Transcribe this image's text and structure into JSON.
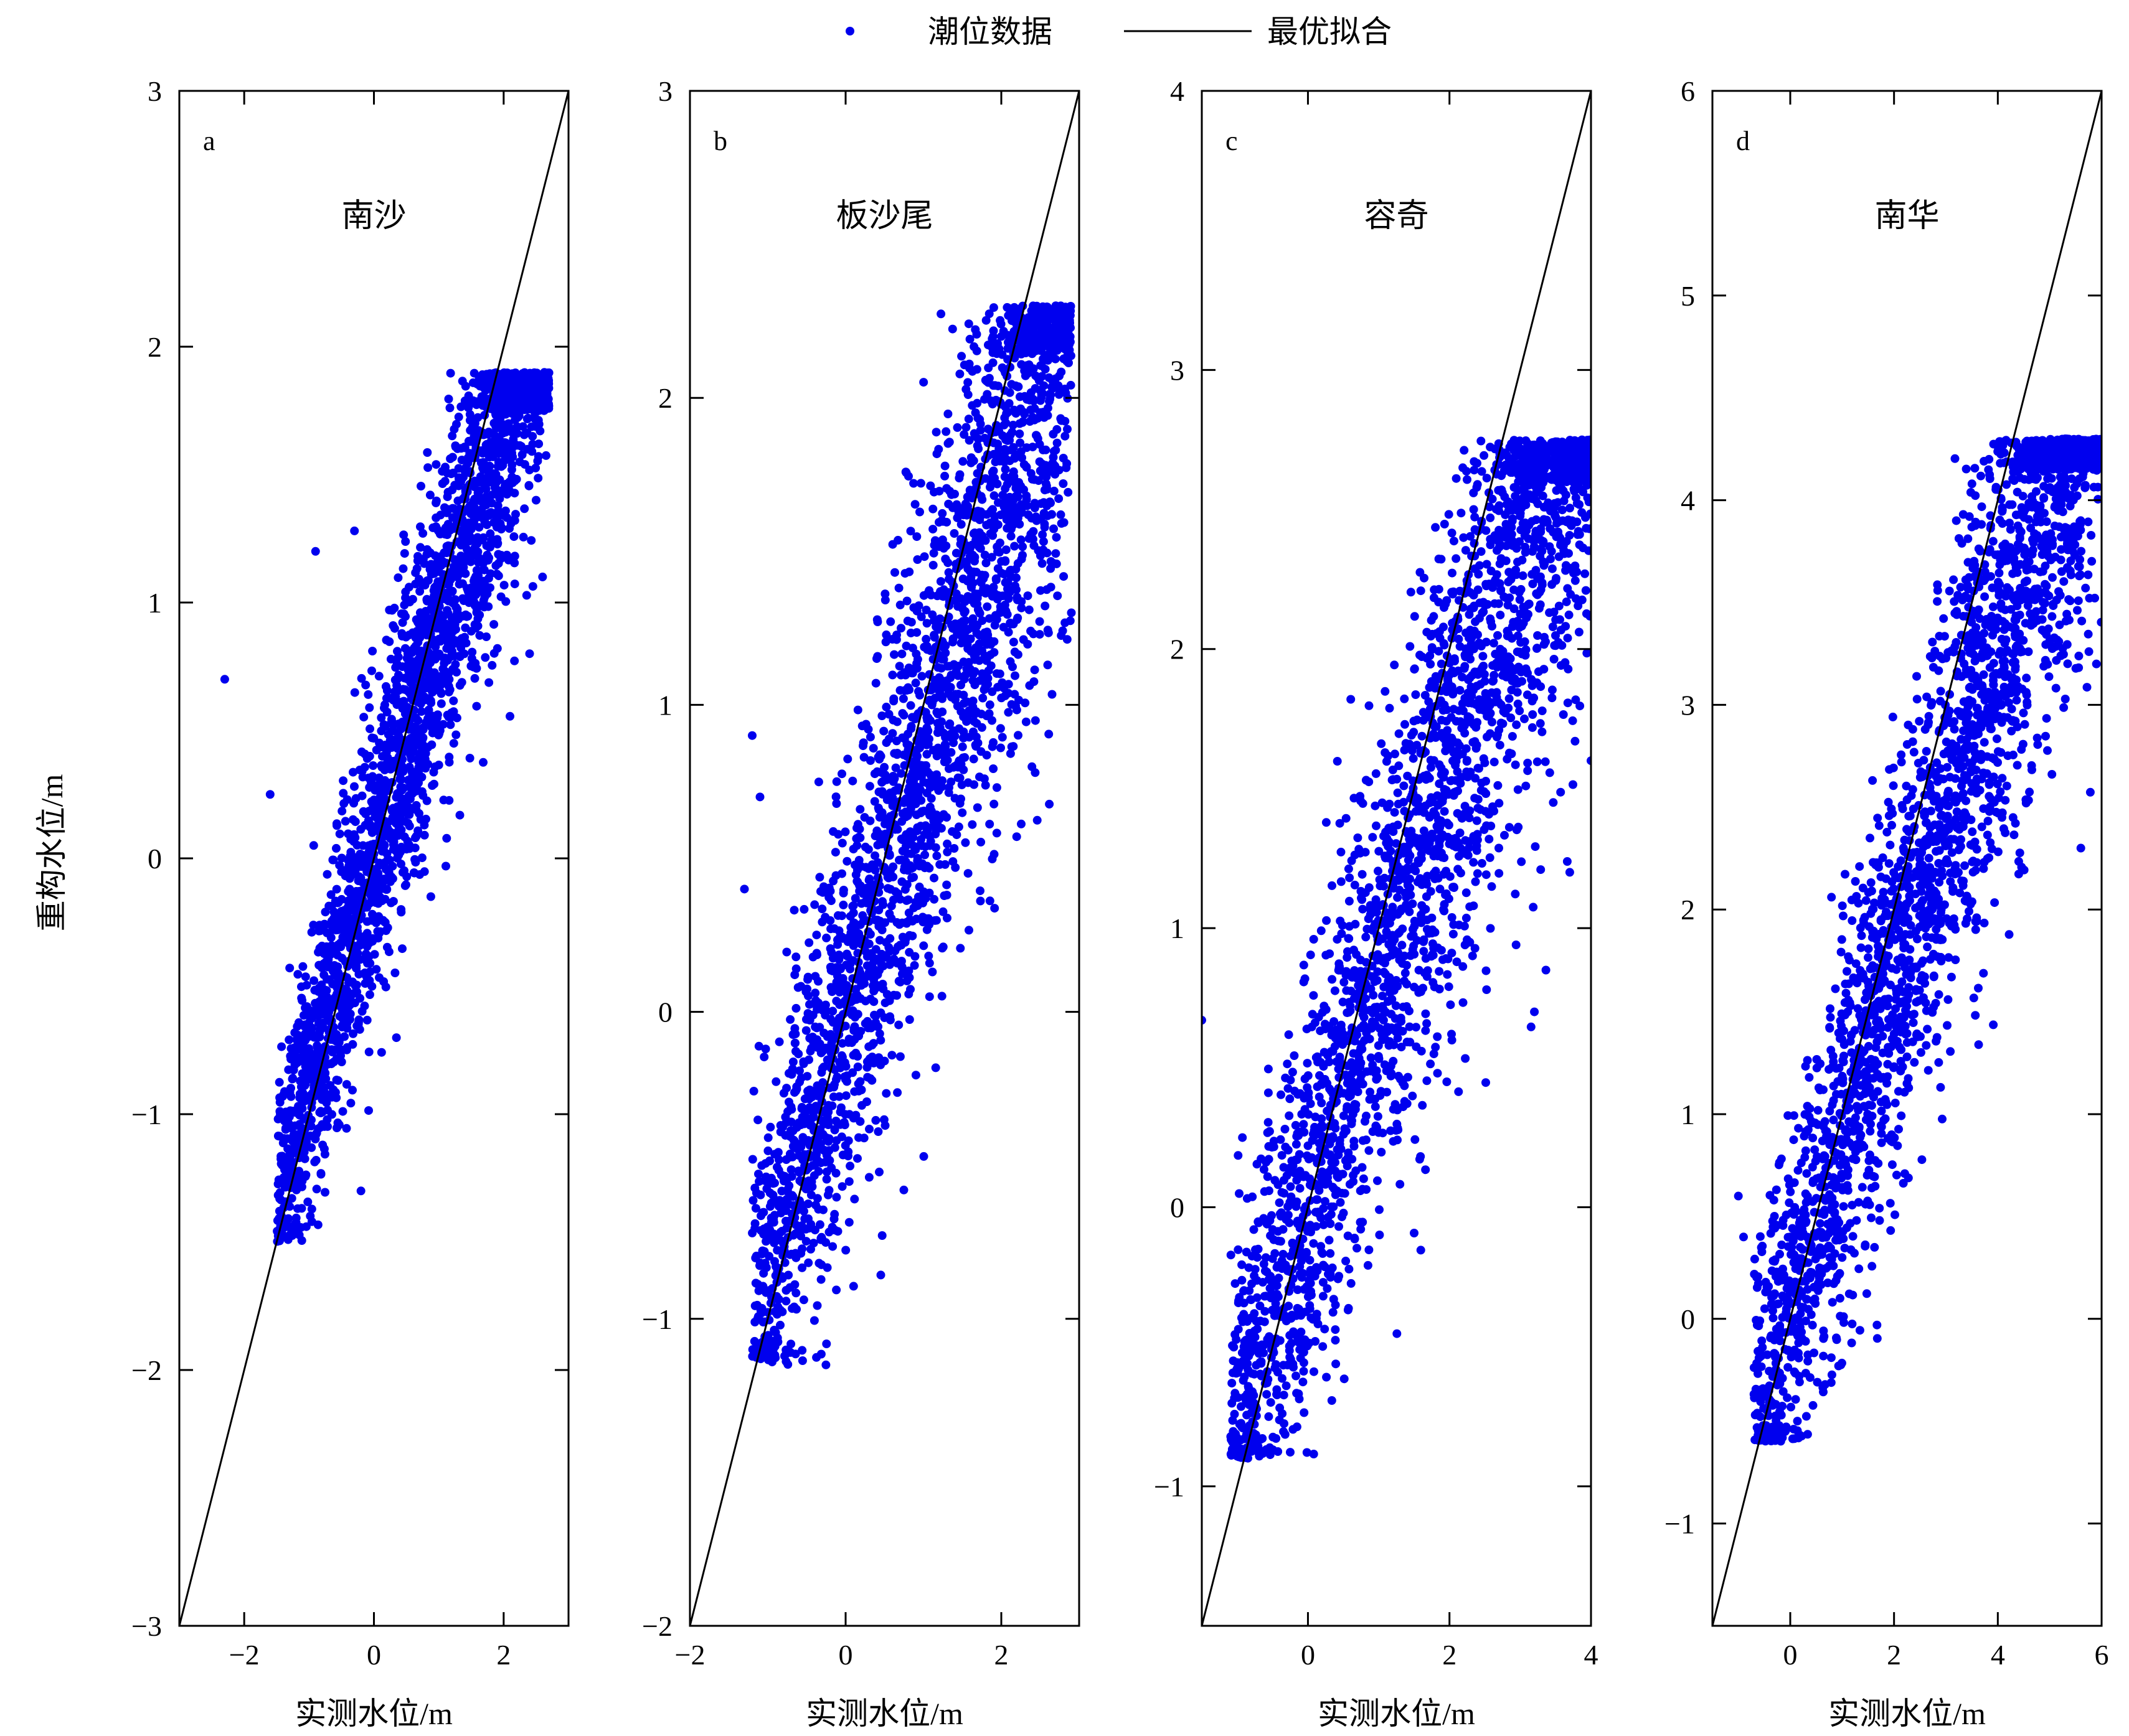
{
  "legend": {
    "scatter_label": "潮位数据",
    "line_label": "最优拟合",
    "placement": "top-center"
  },
  "colors": {
    "points": "#0000ee",
    "line": "#000000",
    "frame": "#000000"
  },
  "ylabel": "重构水位/m",
  "chart_data": [
    {
      "type": "scatter",
      "letter": "a",
      "station": "南沙",
      "xlabel": "实测水位/m",
      "xlim": [
        -3,
        3
      ],
      "ylim": [
        -3,
        3
      ],
      "xticks": [
        "−2",
        "0",
        "2"
      ],
      "xtick_values": [
        -2,
        0,
        2
      ],
      "yticks": [
        "3",
        "2",
        "1",
        "0",
        "−1",
        "−2",
        "−3"
      ],
      "ytick_values": [
        3,
        2,
        1,
        0,
        -1,
        -2,
        -3
      ],
      "fit_line": {
        "slope": 1,
        "intercept": 0,
        "from": [
          -3,
          -3
        ],
        "to": [
          3,
          3
        ]
      },
      "cloud": {
        "x_range": [
          -1.5,
          2.7
        ],
        "y_range": [
          -1.5,
          1.9
        ],
        "slope": 0.88,
        "offset": 0.02,
        "spread": 0.32
      },
      "outliers": [
        [
          -2.3,
          0.7
        ],
        [
          -1.6,
          0.25
        ],
        [
          -0.9,
          1.2
        ],
        [
          -0.3,
          1.28
        ],
        [
          2.5,
          1.4
        ],
        [
          2.6,
          1.1
        ],
        [
          2.4,
          0.8
        ],
        [
          -0.2,
          -1.3
        ]
      ]
    },
    {
      "type": "scatter",
      "letter": "b",
      "station": "板沙尾",
      "xlabel": "实测水位/m",
      "xlim": [
        -2,
        3
      ],
      "ylim": [
        -2,
        3
      ],
      "xticks": [
        "−2",
        "0",
        "2"
      ],
      "xtick_values": [
        -2,
        0,
        2
      ],
      "yticks": [
        "3",
        "2",
        "1",
        "0",
        "−1",
        "−2"
      ],
      "ytick_values": [
        3,
        2,
        1,
        0,
        -1,
        -2
      ],
      "fit_line": {
        "slope": 1,
        "intercept": 0,
        "from": [
          -2,
          -2
        ],
        "to": [
          3,
          3
        ]
      },
      "cloud": {
        "x_range": [
          -1.2,
          2.9
        ],
        "y_range": [
          -1.15,
          2.3
        ],
        "slope": 0.82,
        "offset": 0.02,
        "spread": 0.4
      },
      "outliers": [
        [
          -1.2,
          0.9
        ],
        [
          -1.3,
          0.4
        ],
        [
          -1.1,
          0.7
        ],
        [
          2.7,
          2.3
        ],
        [
          2.9,
          1.3
        ],
        [
          2.0,
          2.2
        ]
      ]
    },
    {
      "type": "scatter",
      "letter": "c",
      "station": "容奇",
      "xlabel": "实测水位/m",
      "xlim": [
        -1.5,
        4
      ],
      "ylim": [
        -1.5,
        4
      ],
      "xticks": [
        "0",
        "2",
        "4"
      ],
      "xtick_values": [
        0,
        2,
        4
      ],
      "yticks": [
        "4",
        "3",
        "2",
        "1",
        "0",
        "−1"
      ],
      "ytick_values": [
        4,
        3,
        2,
        1,
        0,
        -1
      ],
      "fit_line": {
        "slope": 1,
        "intercept": 0,
        "from": [
          -1.5,
          -1.5
        ],
        "to": [
          4,
          4
        ]
      },
      "cloud": {
        "x_range": [
          -1.1,
          4.0
        ],
        "y_range": [
          -0.9,
          2.75
        ],
        "slope": 0.78,
        "offset": 0.02,
        "spread": 0.45
      },
      "outliers": [
        [
          -1.5,
          0.67
        ],
        [
          3.2,
          0.7
        ],
        [
          3.3,
          2.7
        ],
        [
          4.0,
          1.6
        ],
        [
          3.7,
          1.2
        ]
      ]
    },
    {
      "type": "scatter",
      "letter": "d",
      "station": "南华",
      "xlabel": "实测水位/m",
      "xlim": [
        -1.5,
        6
      ],
      "ylim": [
        -1.5,
        6
      ],
      "xticks": [
        "0",
        "2",
        "4",
        "6"
      ],
      "xtick_values": [
        0,
        2,
        4,
        6
      ],
      "yticks": [
        "6",
        "5",
        "4",
        "3",
        "2",
        "1",
        "0",
        "−1"
      ],
      "ytick_values": [
        6,
        5,
        4,
        3,
        2,
        1,
        0,
        -1
      ],
      "fit_line": {
        "slope": 1,
        "intercept": 0,
        "from": [
          -1.5,
          -1.5
        ],
        "to": [
          6,
          6
        ]
      },
      "cloud": {
        "x_range": [
          -0.7,
          6.0
        ],
        "y_range": [
          -0.6,
          4.3
        ],
        "slope": 0.8,
        "offset": 0.1,
        "spread": 0.55
      },
      "outliers": [
        [
          -1.0,
          0.6
        ],
        [
          -0.9,
          0.4
        ],
        [
          5.3,
          4.3
        ],
        [
          5.6,
          2.3
        ],
        [
          5.9,
          3.2
        ],
        [
          4.6,
          4.1
        ],
        [
          3.2,
          3.9
        ]
      ]
    }
  ]
}
